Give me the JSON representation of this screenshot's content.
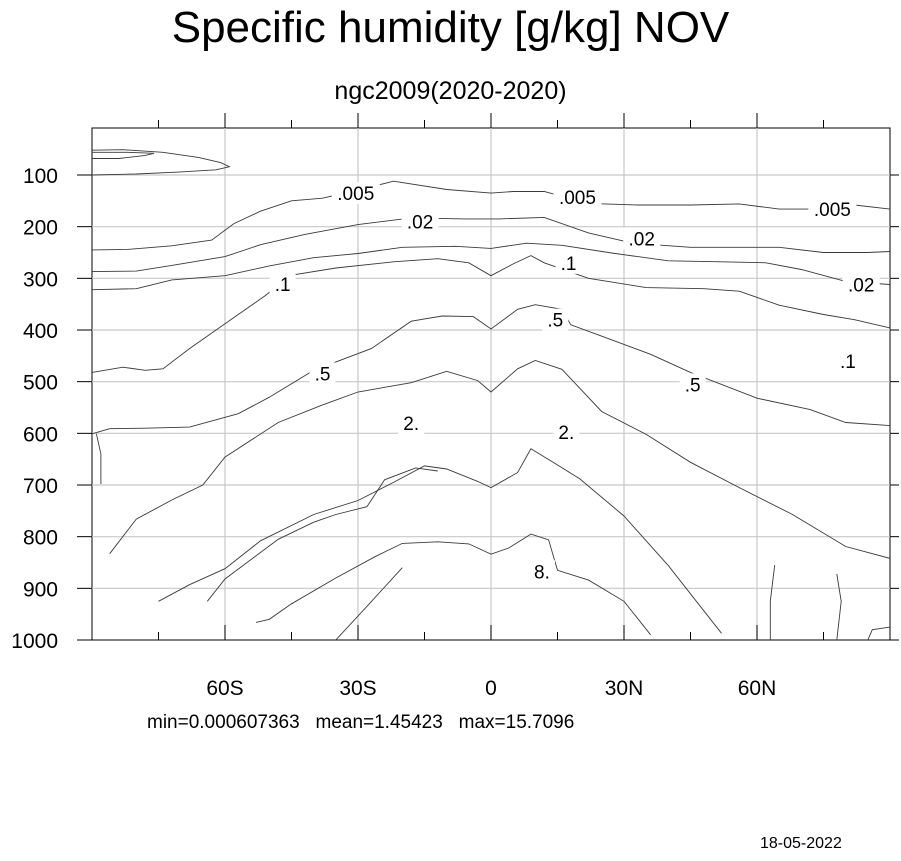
{
  "title": "Specific humidity [g/kg] NOV",
  "subtitle": "ngc2009(2020-2020)",
  "stats": "min=0.000607363   mean=1.45423   max=15.7096",
  "date": "18-05-2022",
  "chart_data": {
    "type": "contour",
    "x_tick_labels": [
      "60S",
      "30S",
      "0",
      "30N",
      "60N"
    ],
    "x_tick_values": [
      -60,
      -30,
      0,
      30,
      60
    ],
    "xlim": [
      -90,
      90
    ],
    "y_tick_labels": [
      "100",
      "200",
      "300",
      "400",
      "500",
      "600",
      "700",
      "800",
      "900",
      "1000"
    ],
    "y_tick_values": [
      100,
      200,
      300,
      400,
      500,
      600,
      700,
      800,
      900,
      1000
    ],
    "ylim": [
      1000,
      10
    ],
    "grid": true,
    "contour_labels": [
      {
        "text": ".005",
        "x": -30.5,
        "y": 135
      },
      {
        "text": ".005",
        "x": 19.5,
        "y": 143
      },
      {
        "text": ".005",
        "x": 77,
        "y": 166
      },
      {
        "text": ".02",
        "x": -16,
        "y": 190
      },
      {
        "text": ".02",
        "x": 34,
        "y": 223
      },
      {
        "text": ".02",
        "x": 83.5,
        "y": 312
      },
      {
        "text": ".1",
        "x": 17.5,
        "y": 270
      },
      {
        "text": ".1",
        "x": -47,
        "y": 311
      },
      {
        "text": ".1",
        "x": 80.5,
        "y": 460
      },
      {
        "text": ".5",
        "x": 14.5,
        "y": 380
      },
      {
        "text": ".5",
        "x": -38,
        "y": 484
      },
      {
        "text": ".5",
        "x": 45.5,
        "y": 505
      },
      {
        "text": "2.",
        "x": -18,
        "y": 580
      },
      {
        "text": "2.",
        "x": 17,
        "y": 597
      },
      {
        "text": "8.",
        "x": 11.5,
        "y": 867
      }
    ],
    "contours": [
      {
        "level": "",
        "points": [
          [
            -90,
            100
          ],
          [
            -80,
            98
          ],
          [
            -70,
            94
          ],
          [
            -62,
            90
          ],
          [
            -59,
            84
          ],
          [
            -61,
            76
          ],
          [
            -66,
            66
          ],
          [
            -74,
            56
          ],
          [
            -83,
            51
          ],
          [
            -90,
            52
          ]
        ]
      },
      {
        "level": "",
        "points": [
          [
            -90,
            68
          ],
          [
            -84,
            68
          ],
          [
            -78,
            62
          ],
          [
            -76,
            58
          ],
          [
            -82,
            56
          ],
          [
            -90,
            56
          ]
        ]
      },
      {
        "level": ".005",
        "points": [
          [
            -90,
            245
          ],
          [
            -82,
            244
          ],
          [
            -72,
            237
          ],
          [
            -63,
            226
          ],
          [
            -58,
            194
          ],
          [
            -52,
            170
          ],
          [
            -45,
            150
          ],
          [
            -38,
            145
          ],
          [
            -28,
            125
          ],
          [
            -22,
            112
          ],
          [
            -10,
            128
          ],
          [
            0,
            135
          ],
          [
            5,
            132
          ],
          [
            12,
            132
          ],
          [
            22,
            155
          ],
          [
            33,
            158
          ],
          [
            45,
            158
          ],
          [
            56,
            156
          ],
          [
            65,
            166
          ],
          [
            75,
            166
          ],
          [
            82,
            158
          ],
          [
            90,
            166
          ]
        ]
      },
      {
        "level": ".02",
        "points": [
          [
            -90,
            287
          ],
          [
            -80,
            286
          ],
          [
            -72,
            275
          ],
          [
            -60,
            258
          ],
          [
            -52,
            235
          ],
          [
            -42,
            215
          ],
          [
            -30,
            196
          ],
          [
            -18,
            183
          ],
          [
            -6,
            185
          ],
          [
            2,
            185
          ],
          [
            12,
            182
          ],
          [
            22,
            212
          ],
          [
            32,
            232
          ],
          [
            45,
            240
          ],
          [
            55,
            240
          ],
          [
            65,
            240
          ],
          [
            75,
            250
          ],
          [
            85,
            250
          ],
          [
            90,
            248
          ]
        ]
      },
      {
        "level": "",
        "points": [
          [
            -90,
            322
          ],
          [
            -80,
            320
          ],
          [
            -72,
            303
          ],
          [
            -60,
            295
          ],
          [
            -50,
            276
          ],
          [
            -40,
            260
          ],
          [
            -30,
            252
          ],
          [
            -20,
            240
          ],
          [
            -8,
            238
          ],
          [
            0,
            242
          ],
          [
            8,
            232
          ],
          [
            16,
            236
          ],
          [
            28,
            252
          ],
          [
            40,
            266
          ],
          [
            52,
            268
          ],
          [
            62,
            270
          ],
          [
            70,
            283
          ],
          [
            80,
            306
          ],
          [
            90,
            312
          ]
        ]
      },
      {
        "level": ".1",
        "points": [
          [
            -90,
            482
          ],
          [
            -83,
            472
          ],
          [
            -78,
            478
          ],
          [
            -74,
            475
          ],
          [
            -68,
            436
          ],
          [
            -60,
            388
          ],
          [
            -51,
            334
          ],
          [
            -45,
            294
          ],
          [
            -35,
            280
          ],
          [
            -22,
            268
          ],
          [
            -12,
            262
          ],
          [
            -5,
            270
          ],
          [
            0,
            295
          ],
          [
            5,
            272
          ],
          [
            9,
            256
          ],
          [
            12,
            270
          ],
          [
            22,
            300
          ],
          [
            35,
            318
          ],
          [
            48,
            320
          ],
          [
            56,
            325
          ],
          [
            65,
            352
          ],
          [
            75,
            370
          ],
          [
            82,
            380
          ],
          [
            90,
            396
          ]
        ]
      },
      {
        "level": ".5",
        "points": [
          [
            -90,
            601
          ],
          [
            -86,
            591
          ],
          [
            -78,
            590
          ],
          [
            -68,
            588
          ],
          [
            -57,
            562
          ],
          [
            -50,
            530
          ],
          [
            -40,
            478
          ],
          [
            -27,
            436
          ],
          [
            -18,
            383
          ],
          [
            -11,
            373
          ],
          [
            -4,
            374
          ],
          [
            0,
            398
          ],
          [
            6,
            360
          ],
          [
            10,
            351
          ],
          [
            16,
            360
          ],
          [
            18,
            390
          ],
          [
            25,
            412
          ],
          [
            36,
            447
          ],
          [
            45,
            482
          ],
          [
            60,
            532
          ],
          [
            72,
            554
          ],
          [
            80,
            579
          ],
          [
            90,
            585
          ]
        ]
      },
      {
        "level": "",
        "points": [
          [
            -89,
            601
          ],
          [
            -88,
            640
          ],
          [
            -88,
            698
          ]
        ]
      },
      {
        "level": "2.",
        "points": [
          [
            -86,
            833
          ],
          [
            -80,
            766
          ],
          [
            -72,
            729
          ],
          [
            -65,
            700
          ],
          [
            -60,
            646
          ],
          [
            -48,
            579
          ],
          [
            -38,
            545
          ],
          [
            -30,
            520
          ],
          [
            -18,
            502
          ],
          [
            -10,
            480
          ],
          [
            -3,
            498
          ],
          [
            0,
            520
          ],
          [
            6,
            475
          ],
          [
            10,
            459
          ],
          [
            16,
            476
          ],
          [
            25,
            558
          ],
          [
            35,
            602
          ],
          [
            45,
            656
          ],
          [
            56,
            705
          ],
          [
            68,
            757
          ],
          [
            80,
            819
          ],
          [
            90,
            842
          ]
        ]
      },
      {
        "level": "",
        "points": [
          [
            -75,
            925
          ],
          [
            -68,
            893
          ],
          [
            -60,
            862
          ],
          [
            -52,
            808
          ],
          [
            -40,
            757
          ],
          [
            -30,
            730
          ],
          [
            -22,
            695
          ],
          [
            -15,
            663
          ],
          [
            -10,
            669
          ],
          [
            -3,
            693
          ],
          [
            0,
            705
          ],
          [
            6,
            676
          ],
          [
            9,
            630
          ],
          [
            14,
            656
          ],
          [
            20,
            688
          ],
          [
            30,
            760
          ],
          [
            40,
            856
          ],
          [
            52,
            987
          ]
        ]
      },
      {
        "level": "",
        "points": [
          [
            -64,
            925
          ],
          [
            -60,
            882
          ],
          [
            -48,
            805
          ],
          [
            -40,
            772
          ],
          [
            -35,
            757
          ],
          [
            -28,
            742
          ],
          [
            -24,
            690
          ],
          [
            -17,
            667
          ],
          [
            -12,
            673
          ]
        ]
      },
      {
        "level": "",
        "points": [
          [
            -53,
            966
          ],
          [
            -50,
            960
          ],
          [
            -45,
            930
          ],
          [
            -35,
            880
          ],
          [
            -26,
            838
          ],
          [
            -20,
            813
          ],
          [
            -12,
            810
          ],
          [
            -5,
            814
          ],
          [
            0,
            834
          ],
          [
            4,
            822
          ],
          [
            9,
            795
          ],
          [
            13,
            806
          ],
          [
            15,
            865
          ],
          [
            22,
            884
          ],
          [
            30,
            925
          ],
          [
            36,
            990
          ]
        ]
      },
      {
        "level": "",
        "points": [
          [
            -35,
            1000
          ],
          [
            -28,
            935
          ],
          [
            -20,
            860
          ]
        ]
      },
      {
        "level": "",
        "points": [
          [
            63,
            1000
          ],
          [
            63,
            925
          ],
          [
            64,
            855
          ]
        ]
      },
      {
        "level": "",
        "points": [
          [
            78,
            1000
          ],
          [
            79,
            925
          ],
          [
            78,
            872
          ]
        ]
      },
      {
        "level": "",
        "points": [
          [
            85,
            1000
          ],
          [
            86,
            980
          ],
          [
            90,
            975
          ]
        ]
      }
    ]
  }
}
